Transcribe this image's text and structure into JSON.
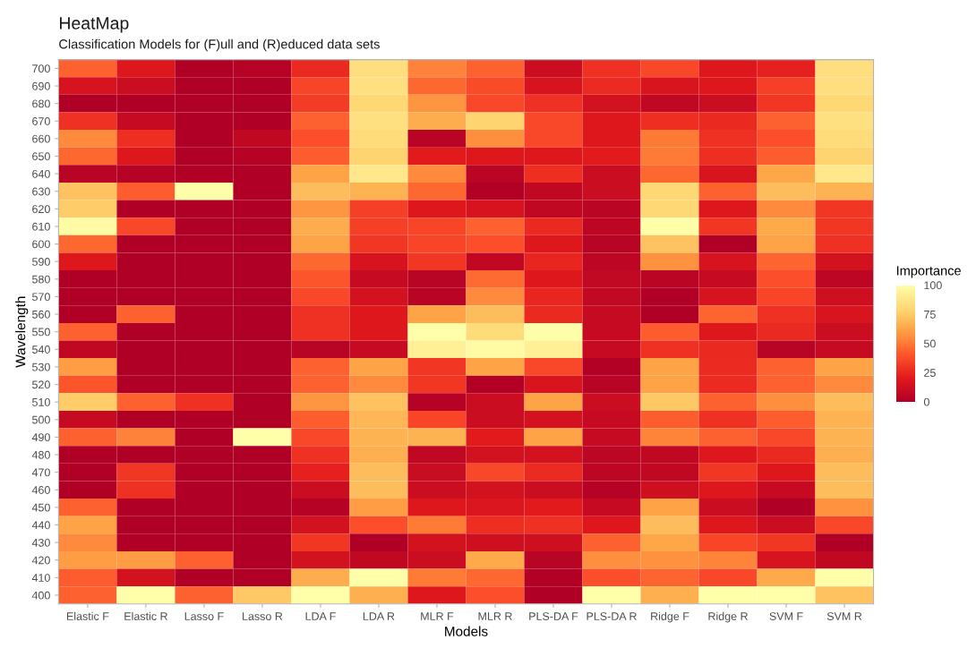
{
  "chart_data": {
    "type": "heatmap",
    "title": "HeatMap",
    "subtitle": "Classification Models for (F)ull and (R)educed data sets",
    "xlabel": "Models",
    "ylabel": "Wavelength",
    "clabel": "Importance",
    "categories": [
      "Elastic F",
      "Elastic R",
      "Lasso F",
      "Lasso R",
      "LDA F",
      "LDA R",
      "MLR F",
      "MLR R",
      "PLS-DA F",
      "PLS-DA R",
      "Ridge F",
      "Ridge R",
      "SVM F",
      "SVM R"
    ],
    "y_categories": [
      "700",
      "690",
      "680",
      "670",
      "660",
      "650",
      "640",
      "630",
      "620",
      "610",
      "600",
      "590",
      "580",
      "570",
      "560",
      "550",
      "540",
      "530",
      "520",
      "510",
      "500",
      "490",
      "480",
      "470",
      "460",
      "450",
      "440",
      "430",
      "420",
      "410",
      "400"
    ],
    "cells": [
      [
        43,
        18,
        0,
        2,
        25,
        83,
        52,
        43,
        10,
        28,
        36,
        18,
        22,
        83
      ],
      [
        15,
        10,
        0,
        0,
        35,
        84,
        45,
        37,
        15,
        26,
        16,
        18,
        33,
        83
      ],
      [
        0,
        0,
        0,
        0,
        32,
        80,
        58,
        36,
        28,
        14,
        6,
        10,
        30,
        80
      ],
      [
        28,
        8,
        0,
        0,
        43,
        84,
        65,
        78,
        36,
        18,
        27,
        25,
        43,
        84
      ],
      [
        55,
        27,
        0,
        6,
        38,
        82,
        3,
        56,
        36,
        18,
        50,
        28,
        38,
        82
      ],
      [
        45,
        18,
        0,
        2,
        42,
        78,
        20,
        18,
        18,
        20,
        50,
        27,
        42,
        78
      ],
      [
        3,
        2,
        0,
        0,
        62,
        88,
        55,
        4,
        27,
        10,
        45,
        16,
        63,
        88
      ],
      [
        72,
        42,
        100,
        0,
        70,
        67,
        45,
        1,
        6,
        10,
        80,
        43,
        70,
        67
      ],
      [
        75,
        0,
        0,
        0,
        58,
        33,
        18,
        15,
        6,
        4,
        80,
        18,
        55,
        30
      ],
      [
        98,
        36,
        0,
        0,
        65,
        33,
        35,
        43,
        25,
        5,
        100,
        30,
        64,
        30
      ],
      [
        45,
        0,
        0,
        0,
        62,
        30,
        35,
        38,
        18,
        3,
        72,
        0,
        62,
        28
      ],
      [
        18,
        0,
        0,
        0,
        45,
        15,
        30,
        6,
        24,
        5,
        57,
        15,
        44,
        14
      ],
      [
        0,
        0,
        0,
        0,
        40,
        8,
        3,
        46,
        18,
        7,
        4,
        8,
        38,
        5
      ],
      [
        0,
        0,
        0,
        0,
        36,
        14,
        3,
        55,
        24,
        7,
        0,
        15,
        35,
        12
      ],
      [
        0,
        43,
        0,
        0,
        28,
        18,
        62,
        70,
        25,
        8,
        0,
        44,
        28,
        16
      ],
      [
        43,
        0,
        0,
        0,
        28,
        18,
        100,
        82,
        100,
        8,
        42,
        18,
        25,
        10
      ],
      [
        6,
        0,
        0,
        0,
        3,
        8,
        92,
        98,
        92,
        8,
        28,
        25,
        3,
        8
      ],
      [
        60,
        0,
        0,
        0,
        43,
        62,
        30,
        62,
        36,
        1,
        62,
        26,
        43,
        62
      ],
      [
        40,
        0,
        0,
        0,
        43,
        55,
        30,
        1,
        16,
        3,
        62,
        26,
        43,
        55
      ],
      [
        75,
        43,
        28,
        0,
        58,
        72,
        2,
        10,
        62,
        10,
        74,
        43,
        56,
        70
      ],
      [
        8,
        0,
        0,
        0,
        42,
        68,
        35,
        10,
        14,
        8,
        42,
        28,
        42,
        67
      ],
      [
        43,
        52,
        0,
        100,
        36,
        67,
        67,
        20,
        62,
        8,
        53,
        43,
        36,
        67
      ],
      [
        0,
        0,
        0,
        0,
        28,
        66,
        6,
        14,
        14,
        5,
        6,
        18,
        25,
        66
      ],
      [
        0,
        30,
        0,
        0,
        22,
        70,
        9,
        36,
        26,
        5,
        6,
        30,
        18,
        70
      ],
      [
        0,
        28,
        0,
        0,
        10,
        70,
        10,
        14,
        10,
        2,
        12,
        18,
        8,
        70
      ],
      [
        43,
        0,
        0,
        0,
        2,
        60,
        18,
        17,
        20,
        8,
        62,
        10,
        0,
        57
      ],
      [
        62,
        0,
        0,
        0,
        14,
        38,
        50,
        27,
        28,
        18,
        70,
        18,
        10,
        36
      ],
      [
        55,
        0,
        0,
        0,
        30,
        0,
        14,
        12,
        12,
        43,
        63,
        35,
        30,
        0
      ],
      [
        60,
        60,
        43,
        0,
        14,
        6,
        10,
        64,
        3,
        56,
        57,
        53,
        15,
        6
      ],
      [
        42,
        14,
        0,
        0,
        65,
        100,
        50,
        45,
        1,
        38,
        44,
        36,
        64,
        100
      ],
      [
        43,
        100,
        43,
        74,
        100,
        66,
        18,
        38,
        0,
        100,
        66,
        100,
        100,
        72
      ]
    ],
    "clim": [
      0,
      100
    ],
    "cticks": [
      0,
      25,
      50,
      75,
      100
    ]
  }
}
